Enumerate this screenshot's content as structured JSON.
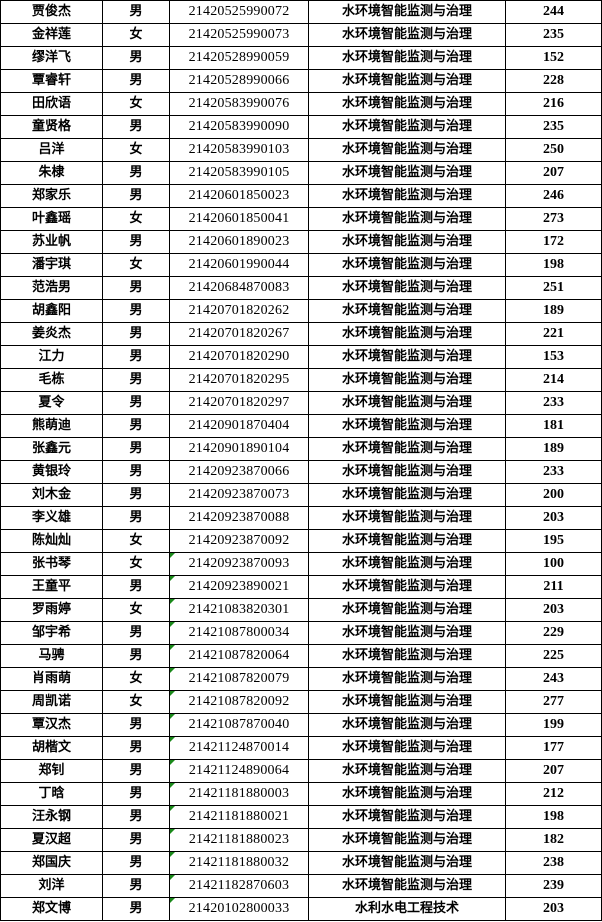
{
  "colors": {
    "text_flag": "#1a8a1a",
    "border": "#000000"
  },
  "rows": [
    {
      "name": "贾俊杰",
      "gender": "男",
      "id": "21420525990072",
      "major": "水环境智能监测与治理",
      "score": "244",
      "flag": false
    },
    {
      "name": "金祥莲",
      "gender": "女",
      "id": "21420525990073",
      "major": "水环境智能监测与治理",
      "score": "235",
      "flag": false
    },
    {
      "name": "缪洋飞",
      "gender": "男",
      "id": "21420528990059",
      "major": "水环境智能监测与治理",
      "score": "152",
      "flag": false
    },
    {
      "name": "覃睿轩",
      "gender": "男",
      "id": "21420528990066",
      "major": "水环境智能监测与治理",
      "score": "228",
      "flag": false
    },
    {
      "name": "田欣语",
      "gender": "女",
      "id": "21420583990076",
      "major": "水环境智能监测与治理",
      "score": "216",
      "flag": false
    },
    {
      "name": "童贤格",
      "gender": "男",
      "id": "21420583990090",
      "major": "水环境智能监测与治理",
      "score": "235",
      "flag": false
    },
    {
      "name": "吕洋",
      "gender": "女",
      "id": "21420583990103",
      "major": "水环境智能监测与治理",
      "score": "250",
      "flag": false
    },
    {
      "name": "朱棣",
      "gender": "男",
      "id": "21420583990105",
      "major": "水环境智能监测与治理",
      "score": "207",
      "flag": false
    },
    {
      "name": "郑家乐",
      "gender": "男",
      "id": "21420601850023",
      "major": "水环境智能监测与治理",
      "score": "246",
      "flag": false
    },
    {
      "name": "叶鑫瑶",
      "gender": "女",
      "id": "21420601850041",
      "major": "水环境智能监测与治理",
      "score": "273",
      "flag": false
    },
    {
      "name": "苏业帆",
      "gender": "男",
      "id": "21420601890023",
      "major": "水环境智能监测与治理",
      "score": "172",
      "flag": false
    },
    {
      "name": "潘宇琪",
      "gender": "女",
      "id": "21420601990044",
      "major": "水环境智能监测与治理",
      "score": "198",
      "flag": false
    },
    {
      "name": "范浩男",
      "gender": "男",
      "id": "21420684870083",
      "major": "水环境智能监测与治理",
      "score": "251",
      "flag": false
    },
    {
      "name": "胡鑫阳",
      "gender": "男",
      "id": "21420701820262",
      "major": "水环境智能监测与治理",
      "score": "189",
      "flag": false
    },
    {
      "name": "姜炎杰",
      "gender": "男",
      "id": "21420701820267",
      "major": "水环境智能监测与治理",
      "score": "221",
      "flag": false
    },
    {
      "name": "江力",
      "gender": "男",
      "id": "21420701820290",
      "major": "水环境智能监测与治理",
      "score": "153",
      "flag": false
    },
    {
      "name": "毛栋",
      "gender": "男",
      "id": "21420701820295",
      "major": "水环境智能监测与治理",
      "score": "214",
      "flag": false
    },
    {
      "name": "夏令",
      "gender": "男",
      "id": "21420701820297",
      "major": "水环境智能监测与治理",
      "score": "233",
      "flag": false
    },
    {
      "name": "熊萌迪",
      "gender": "男",
      "id": "21420901870404",
      "major": "水环境智能监测与治理",
      "score": "181",
      "flag": false
    },
    {
      "name": "张鑫元",
      "gender": "男",
      "id": "21420901890104",
      "major": "水环境智能监测与治理",
      "score": "189",
      "flag": false
    },
    {
      "name": "黄银玲",
      "gender": "男",
      "id": "21420923870066",
      "major": "水环境智能监测与治理",
      "score": "233",
      "flag": false
    },
    {
      "name": "刘木金",
      "gender": "男",
      "id": "21420923870073",
      "major": "水环境智能监测与治理",
      "score": "200",
      "flag": false
    },
    {
      "name": "李义雄",
      "gender": "男",
      "id": "21420923870088",
      "major": "水环境智能监测与治理",
      "score": "203",
      "flag": false
    },
    {
      "name": "陈灿灿",
      "gender": "女",
      "id": "21420923870092",
      "major": "水环境智能监测与治理",
      "score": "195",
      "flag": false
    },
    {
      "name": "张书琴",
      "gender": "女",
      "id": "21420923870093",
      "major": "水环境智能监测与治理",
      "score": "100",
      "flag": true
    },
    {
      "name": "王童平",
      "gender": "男",
      "id": "21420923890021",
      "major": "水环境智能监测与治理",
      "score": "211",
      "flag": true
    },
    {
      "name": "罗雨婷",
      "gender": "女",
      "id": "21421083820301",
      "major": "水环境智能监测与治理",
      "score": "203",
      "flag": true
    },
    {
      "name": "邹宇希",
      "gender": "男",
      "id": "21421087800034",
      "major": "水环境智能监测与治理",
      "score": "229",
      "flag": true
    },
    {
      "name": "马骋",
      "gender": "男",
      "id": "21421087820064",
      "major": "水环境智能监测与治理",
      "score": "225",
      "flag": true
    },
    {
      "name": "肖雨萌",
      "gender": "女",
      "id": "21421087820079",
      "major": "水环境智能监测与治理",
      "score": "243",
      "flag": true
    },
    {
      "name": "周凯诺",
      "gender": "女",
      "id": "21421087820092",
      "major": "水环境智能监测与治理",
      "score": "277",
      "flag": true
    },
    {
      "name": "覃汉杰",
      "gender": "男",
      "id": "21421087870040",
      "major": "水环境智能监测与治理",
      "score": "199",
      "flag": true
    },
    {
      "name": "胡楷文",
      "gender": "男",
      "id": "21421124870014",
      "major": "水环境智能监测与治理",
      "score": "177",
      "flag": true
    },
    {
      "name": "郑钊",
      "gender": "男",
      "id": "21421124890064",
      "major": "水环境智能监测与治理",
      "score": "207",
      "flag": true
    },
    {
      "name": "丁晗",
      "gender": "男",
      "id": "21421181880003",
      "major": "水环境智能监测与治理",
      "score": "212",
      "flag": true
    },
    {
      "name": "汪永钢",
      "gender": "男",
      "id": "21421181880021",
      "major": "水环境智能监测与治理",
      "score": "198",
      "flag": true
    },
    {
      "name": "夏汉超",
      "gender": "男",
      "id": "21421181880023",
      "major": "水环境智能监测与治理",
      "score": "182",
      "flag": true
    },
    {
      "name": "郑国庆",
      "gender": "男",
      "id": "21421181880032",
      "major": "水环境智能监测与治理",
      "score": "238",
      "flag": true
    },
    {
      "name": "刘洋",
      "gender": "男",
      "id": "21421182870603",
      "major": "水环境智能监测与治理",
      "score": "239",
      "flag": true
    },
    {
      "name": "郑文博",
      "gender": "男",
      "id": "21420102800033",
      "major": "水利水电工程技术",
      "score": "203",
      "flag": true
    }
  ]
}
